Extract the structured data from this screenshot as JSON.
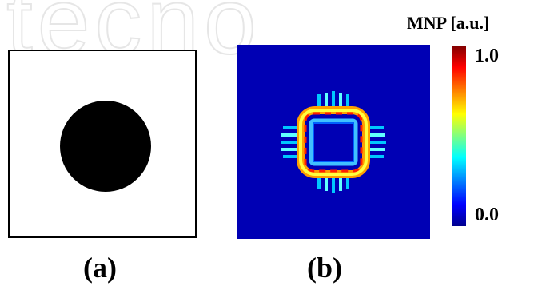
{
  "watermark": {
    "text": "tecno"
  },
  "figure": {
    "colorbar": {
      "title": "MNP [a.u.]",
      "max_label": "1.0",
      "min_label": "0.0"
    },
    "panels": [
      {
        "label": "(a)"
      },
      {
        "label": "(b)"
      }
    ]
  },
  "colors": {
    "map_background": "#0000b4",
    "frame": "#000000"
  }
}
